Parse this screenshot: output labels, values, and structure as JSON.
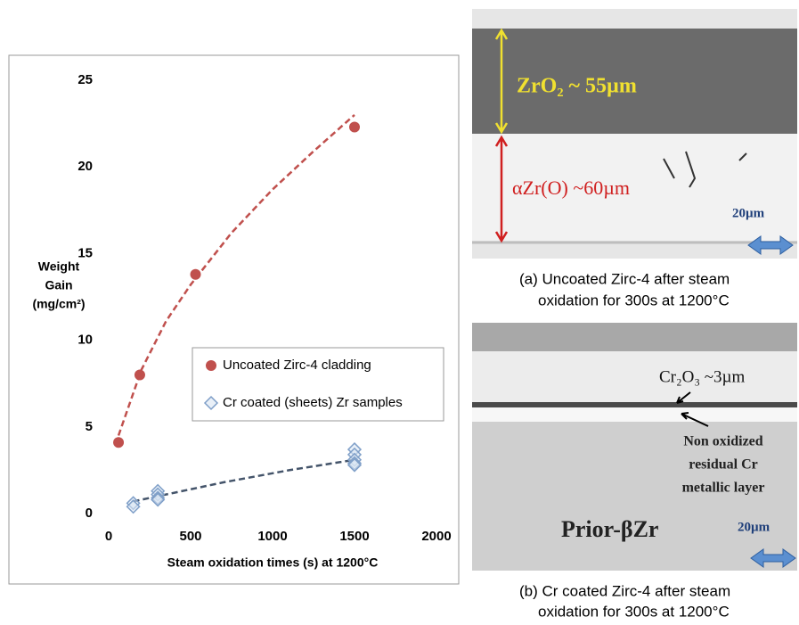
{
  "chart_data": {
    "type": "scatter",
    "xlabel": "Steam oxidation times (s) at 1200°C",
    "ylabel": [
      "Weight",
      "Gain",
      "(mg/cm²)"
    ],
    "xlim": [
      0,
      2000
    ],
    "xticks": [
      0,
      500,
      1000,
      1500,
      2000
    ],
    "ylim": [
      0,
      25
    ],
    "yticks": [
      0,
      5,
      10,
      15,
      20,
      25
    ],
    "grid": false,
    "series": [
      {
        "name": "Uncoated Zirc-4 cladding",
        "marker": "circle",
        "color": "#c0504d",
        "x": [
          60,
          190,
          530,
          1500
        ],
        "values": [
          4.1,
          8.0,
          13.8,
          22.3
        ]
      },
      {
        "name": "Cr coated (sheets) Zr samples",
        "marker": "diamond",
        "color": "#7f9fc8",
        "x": [
          150,
          150,
          300,
          300,
          300,
          300,
          1500,
          1500,
          1500,
          1500,
          1500
        ],
        "values": [
          0.6,
          0.4,
          1.3,
          1.1,
          0.9,
          0.8,
          3.7,
          3.4,
          3.1,
          2.9,
          2.8
        ]
      }
    ],
    "trendlines": [
      {
        "color": "#c0504d",
        "x": [
          60,
          200,
          350,
          500,
          750,
          1000,
          1250,
          1500
        ],
        "values": [
          4.5,
          8.3,
          11.1,
          13.2,
          16.2,
          18.7,
          20.9,
          23.0
        ]
      },
      {
        "color": "#44546a",
        "x": [
          150,
          300,
          700,
          1100,
          1500
        ],
        "values": [
          0.7,
          1.0,
          1.8,
          2.5,
          3.1
        ]
      }
    ]
  },
  "micrographs": [
    {
      "labels": [
        "ZrO₂ ~ 55µm",
        "αZr(O) ~60µm"
      ],
      "scale": "20µm",
      "caption": [
        "(a) Uncoated Zirc-4 after steam",
        "oxidation for 300s at 1200°C"
      ]
    },
    {
      "labels": [
        "Cr₂O₃ ~3µm",
        "Non oxidized",
        "residual Cr",
        "metallic layer",
        "Prior-βZr"
      ],
      "scale": "20µm",
      "caption": [
        "(b) Cr coated Zirc-4 after steam",
        "oxidation for 300s at 1200°C"
      ]
    }
  ]
}
